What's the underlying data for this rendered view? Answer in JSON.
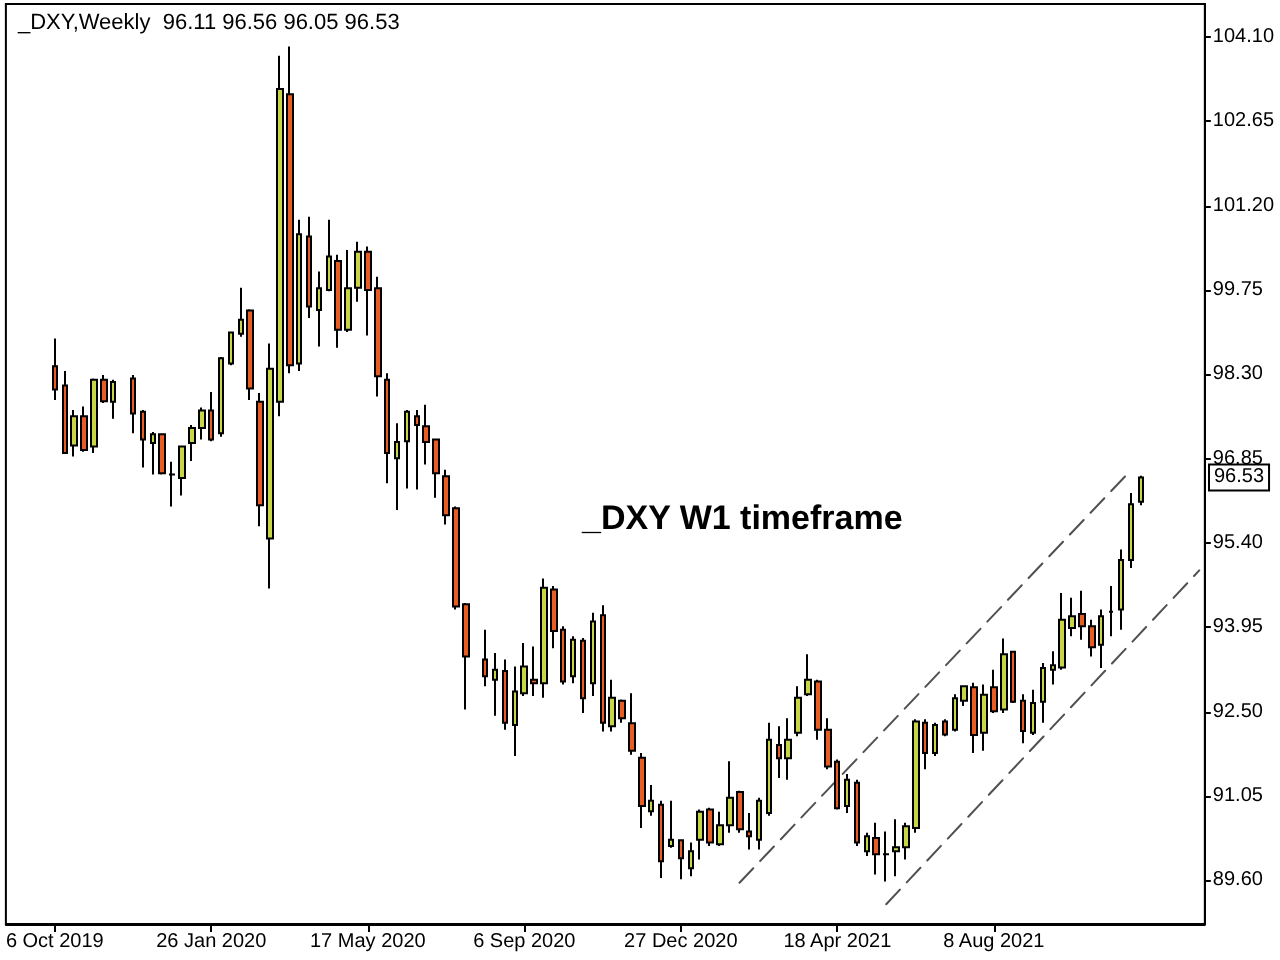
{
  "chart_data": {
    "type": "candlestick",
    "title": "_DXY,Weekly  96.11 96.56 96.05 96.53",
    "x": [
      "2019-10-06",
      "2019-10-13",
      "2019-10-20",
      "2019-10-27",
      "2019-11-03",
      "2019-11-10",
      "2019-11-17",
      "2019-12-01",
      "2019-12-08",
      "2019-12-15",
      "2019-12-22",
      "2019-12-29",
      "2020-01-05",
      "2020-01-12",
      "2020-01-19",
      "2020-01-26",
      "2020-02-02",
      "2020-02-09",
      "2020-02-16",
      "2020-02-23",
      "2020-03-01",
      "2020-03-08",
      "2020-03-15",
      "2020-03-22",
      "2020-03-29",
      "2020-04-05",
      "2020-04-12",
      "2020-04-19",
      "2020-04-26",
      "2020-05-03",
      "2020-05-10",
      "2020-05-17",
      "2020-05-24",
      "2020-05-31",
      "2020-06-07",
      "2020-06-14",
      "2020-06-21",
      "2020-06-28",
      "2020-07-05",
      "2020-07-12",
      "2020-07-19",
      "2020-07-26",
      "2020-08-09",
      "2020-08-16",
      "2020-08-23",
      "2020-08-30",
      "2020-09-06",
      "2020-09-13",
      "2020-09-20",
      "2020-09-27",
      "2020-10-04",
      "2020-10-11",
      "2020-10-18",
      "2020-10-25",
      "2020-11-01",
      "2020-11-08",
      "2020-11-15",
      "2020-11-22",
      "2020-11-29",
      "2020-12-06",
      "2020-12-13",
      "2020-12-20",
      "2020-12-27",
      "2021-01-03",
      "2021-01-10",
      "2021-01-17",
      "2021-01-24",
      "2021-01-31",
      "2021-02-07",
      "2021-02-14",
      "2021-02-21",
      "2021-02-28",
      "2021-03-07",
      "2021-03-14",
      "2021-03-21",
      "2021-03-28",
      "2021-04-04",
      "2021-04-11",
      "2021-04-18",
      "2021-04-25",
      "2021-05-02",
      "2021-05-09",
      "2021-05-16",
      "2021-05-23",
      "2021-05-30",
      "2021-06-06",
      "2021-06-13",
      "2021-06-20",
      "2021-06-27",
      "2021-07-04",
      "2021-07-11",
      "2021-07-18",
      "2021-07-25",
      "2021-08-01",
      "2021-08-08",
      "2021-08-15",
      "2021-08-22",
      "2021-08-29",
      "2021-09-05",
      "2021-09-12",
      "2021-09-19",
      "2021-09-26",
      "2021-10-03",
      "2021-10-10",
      "2021-10-17",
      "2021-10-24",
      "2021-10-31",
      "2021-11-07",
      "2021-11-14",
      "2021-11-21"
    ],
    "ohlc": [
      [
        98.44,
        98.92,
        97.86,
        98.04
      ],
      [
        98.11,
        98.36,
        96.93,
        96.95
      ],
      [
        97.08,
        97.69,
        96.89,
        97.58
      ],
      [
        97.58,
        97.75,
        96.97,
        97.0
      ],
      [
        97.06,
        98.23,
        96.95,
        98.21
      ],
      [
        98.21,
        98.29,
        97.81,
        97.84
      ],
      [
        97.83,
        98.21,
        97.54,
        98.17
      ],
      [
        98.23,
        98.29,
        97.29,
        97.63
      ],
      [
        97.66,
        97.69,
        96.7,
        97.18
      ],
      [
        97.12,
        97.31,
        96.58,
        97.27
      ],
      [
        97.27,
        97.29,
        96.58,
        96.6
      ],
      [
        96.58,
        96.8,
        96.03,
        96.58
      ],
      [
        96.52,
        97.08,
        96.22,
        97.06
      ],
      [
        97.12,
        97.43,
        96.81,
        97.38
      ],
      [
        97.38,
        97.73,
        97.18,
        97.68
      ],
      [
        97.68,
        98.0,
        97.15,
        97.18
      ],
      [
        97.29,
        98.6,
        97.23,
        98.58
      ],
      [
        98.49,
        99.04,
        98.46,
        99.02
      ],
      [
        99.0,
        99.79,
        98.95,
        99.24
      ],
      [
        99.4,
        99.42,
        97.86,
        98.06
      ],
      [
        97.83,
        97.98,
        95.69,
        96.05
      ],
      [
        95.48,
        98.83,
        94.62,
        98.4
      ],
      [
        97.83,
        103.78,
        97.58,
        103.21
      ],
      [
        103.12,
        103.94,
        98.32,
        98.46
      ],
      [
        98.49,
        100.96,
        98.36,
        100.71
      ],
      [
        100.67,
        101.01,
        99.27,
        99.47
      ],
      [
        99.41,
        100.07,
        98.78,
        99.78
      ],
      [
        99.75,
        100.96,
        99.73,
        100.33
      ],
      [
        100.25,
        100.36,
        98.76,
        99.07
      ],
      [
        99.07,
        100.44,
        99.03,
        99.78
      ],
      [
        99.79,
        100.58,
        99.55,
        100.41
      ],
      [
        100.41,
        100.5,
        98.97,
        99.75
      ],
      [
        99.78,
        99.98,
        97.92,
        98.27
      ],
      [
        98.21,
        98.32,
        96.43,
        96.95
      ],
      [
        96.86,
        97.46,
        95.97,
        97.14
      ],
      [
        97.15,
        97.69,
        96.34,
        97.66
      ],
      [
        97.58,
        97.69,
        96.32,
        97.43
      ],
      [
        97.41,
        97.78,
        96.75,
        97.14
      ],
      [
        97.18,
        97.18,
        96.18,
        96.6
      ],
      [
        96.55,
        96.66,
        95.72,
        95.88
      ],
      [
        96.0,
        96.03,
        94.26,
        94.31
      ],
      [
        94.35,
        94.37,
        92.54,
        93.45
      ],
      [
        93.4,
        93.91,
        92.94,
        93.11
      ],
      [
        93.05,
        93.51,
        92.43,
        93.22
      ],
      [
        93.2,
        93.4,
        92.19,
        92.31
      ],
      [
        92.27,
        93.28,
        91.74,
        92.85
      ],
      [
        92.82,
        93.68,
        92.77,
        93.28
      ],
      [
        93.05,
        93.62,
        92.77,
        92.99
      ],
      [
        92.99,
        94.79,
        92.74,
        94.63
      ],
      [
        94.6,
        94.66,
        93.59,
        93.89
      ],
      [
        93.91,
        93.97,
        92.97,
        93.02
      ],
      [
        93.11,
        93.8,
        92.99,
        93.74
      ],
      [
        93.72,
        93.77,
        92.48,
        92.73
      ],
      [
        92.99,
        94.2,
        92.77,
        94.05
      ],
      [
        94.16,
        94.33,
        92.16,
        92.31
      ],
      [
        92.25,
        93.05,
        92.16,
        92.74
      ],
      [
        92.69,
        92.71,
        92.31,
        92.39
      ],
      [
        92.3,
        92.82,
        91.76,
        91.83
      ],
      [
        91.71,
        91.79,
        90.5,
        90.88
      ],
      [
        90.79,
        91.24,
        90.71,
        90.97
      ],
      [
        90.9,
        90.97,
        89.64,
        89.93
      ],
      [
        90.19,
        90.97,
        90.16,
        90.3
      ],
      [
        90.29,
        90.3,
        89.62,
        89.98
      ],
      [
        89.81,
        90.25,
        89.67,
        90.1
      ],
      [
        90.3,
        90.82,
        89.96,
        90.78
      ],
      [
        90.82,
        90.85,
        90.19,
        90.25
      ],
      [
        90.22,
        90.78,
        90.19,
        90.55
      ],
      [
        90.55,
        91.65,
        90.42,
        91.02
      ],
      [
        91.12,
        91.14,
        90.42,
        90.48
      ],
      [
        90.44,
        90.76,
        90.13,
        90.36
      ],
      [
        90.3,
        91.02,
        90.13,
        90.97
      ],
      [
        90.76,
        92.31,
        90.71,
        92.02
      ],
      [
        91.93,
        92.25,
        91.36,
        91.7
      ],
      [
        91.7,
        92.39,
        91.33,
        92.02
      ],
      [
        92.14,
        92.94,
        92.08,
        92.74
      ],
      [
        92.8,
        93.49,
        92.77,
        93.05
      ],
      [
        93.02,
        93.05,
        92.02,
        92.19
      ],
      [
        92.19,
        92.39,
        91.51,
        91.56
      ],
      [
        91.64,
        91.68,
        90.82,
        90.84
      ],
      [
        90.88,
        91.43,
        90.76,
        91.33
      ],
      [
        91.28,
        91.33,
        90.19,
        90.25
      ],
      [
        90.1,
        90.42,
        90.02,
        90.36
      ],
      [
        90.33,
        90.59,
        89.7,
        90.05
      ],
      [
        90.05,
        90.44,
        89.58,
        90.05
      ],
      [
        90.1,
        90.65,
        89.67,
        90.17
      ],
      [
        90.17,
        90.59,
        89.96,
        90.53
      ],
      [
        90.5,
        92.37,
        90.42,
        92.33
      ],
      [
        92.31,
        92.37,
        91.51,
        91.79
      ],
      [
        91.79,
        92.31,
        91.74,
        92.27
      ],
      [
        92.33,
        92.37,
        92.08,
        92.11
      ],
      [
        92.19,
        92.8,
        92.16,
        92.73
      ],
      [
        92.69,
        92.94,
        92.6,
        92.94
      ],
      [
        92.92,
        93.0,
        91.79,
        92.1
      ],
      [
        92.14,
        92.97,
        91.83,
        92.79
      ],
      [
        92.92,
        93.22,
        92.48,
        92.51
      ],
      [
        92.54,
        93.76,
        92.48,
        93.49
      ],
      [
        93.53,
        93.53,
        92.65,
        92.67
      ],
      [
        92.69,
        92.8,
        91.96,
        92.17
      ],
      [
        92.14,
        92.88,
        92.1,
        92.65
      ],
      [
        92.67,
        93.34,
        92.31,
        93.25
      ],
      [
        93.22,
        93.54,
        92.97,
        93.3
      ],
      [
        93.26,
        94.54,
        93.22,
        94.08
      ],
      [
        93.94,
        94.46,
        93.8,
        94.14
      ],
      [
        94.18,
        94.58,
        93.74,
        93.97
      ],
      [
        93.97,
        94.08,
        93.45,
        93.61
      ],
      [
        93.65,
        94.26,
        93.25,
        94.14
      ],
      [
        94.22,
        94.66,
        93.8,
        94.22
      ],
      [
        94.26,
        95.29,
        93.91,
        95.11
      ],
      [
        95.11,
        96.26,
        94.97,
        96.07
      ],
      [
        96.11,
        96.56,
        96.05,
        96.53
      ]
    ],
    "colors": [
      "#e85d24",
      "#e85d24",
      "#c8d645",
      "#e85d24",
      "#c8d645",
      "#e85d24",
      "#c8d645",
      "#e85d24",
      "#e85d24",
      "#c8d645",
      "#e85d24",
      "#000000",
      "#c8d645",
      "#c8d645",
      "#c8d645",
      "#e85d24",
      "#c8d645",
      "#c8d645",
      "#c8d645",
      "#e85d24",
      "#e85d24",
      "#c8d645",
      "#c8d645",
      "#e85d24",
      "#c8d645",
      "#e85d24",
      "#c8d645",
      "#c8d645",
      "#e85d24",
      "#c8d645",
      "#c8d645",
      "#e85d24",
      "#e85d24",
      "#e85d24",
      "#c8d645",
      "#c8d645",
      "#e85d24",
      "#e85d24",
      "#e85d24",
      "#e85d24",
      "#e85d24",
      "#e85d24",
      "#e85d24",
      "#c8d645",
      "#e85d24",
      "#c8d645",
      "#c8d645",
      "#e85d24",
      "#c8d645",
      "#e85d24",
      "#e85d24",
      "#c8d645",
      "#e85d24",
      "#c8d645",
      "#e85d24",
      "#c8d645",
      "#e85d24",
      "#e85d24",
      "#e85d24",
      "#c8d645",
      "#e85d24",
      "#c8d645",
      "#e85d24",
      "#c8d645",
      "#c8d645",
      "#e85d24",
      "#c8d645",
      "#c8d645",
      "#e85d24",
      "#e85d24",
      "#c8d645",
      "#c8d645",
      "#e85d24",
      "#c8d645",
      "#c8d645",
      "#c8d645",
      "#e85d24",
      "#e85d24",
      "#e85d24",
      "#c8d645",
      "#e85d24",
      "#c8d645",
      "#e85d24",
      "#000000",
      "#c8d645",
      "#c8d645",
      "#c8d645",
      "#e85d24",
      "#c8d645",
      "#e85d24",
      "#c8d645",
      "#c8d645",
      "#e85d24",
      "#c8d645",
      "#e85d24",
      "#c8d645",
      "#e85d24",
      "#e85d24",
      "#c8d645",
      "#c8d645",
      "#c8d645",
      "#c8d645",
      "#c8d645",
      "#e85d24",
      "#e85d24",
      "#c8d645",
      "#000000",
      "#c8d645",
      "#c8d645",
      "#c8d645"
    ],
    "series": [
      {
        "type": "line",
        "x": [
          "2021-02-07",
          "2021-11-14"
        ],
        "values": [
          89.56,
          96.65
        ],
        "color": "#505050",
        "line_style": "dashed"
      },
      {
        "type": "line",
        "x": [
          "2021-05-23",
          "2022-01-02"
        ],
        "values": [
          89.19,
          94.93
        ],
        "color": "#505050",
        "line_style": "dashed"
      }
    ],
    "marker": "none",
    "xlim": [
      "2019-09-01",
      "2022-01-06"
    ],
    "xticks": [
      {
        "value": "2019-10-06",
        "label": "6 Oct 2019"
      },
      {
        "value": "2020-01-26",
        "label": "26 Jan 2020"
      },
      {
        "value": "2020-05-17",
        "label": "17 May 2020"
      },
      {
        "value": "2020-09-06",
        "label": "6 Sep 2020"
      },
      {
        "value": "2020-12-27",
        "label": "27 Dec 2020"
      },
      {
        "value": "2021-04-18",
        "label": "18 Apr 2021"
      },
      {
        "value": "2021-08-08",
        "label": "8 Aug 2021"
      }
    ],
    "ylim": [
      88.85,
      104.67
    ],
    "yticks": [
      {
        "value": 89.6,
        "label": "89.60"
      },
      91.05,
      {
        "value": 92.5,
        "label": "92.50"
      },
      93.95,
      {
        "value": 95.4,
        "label": "95.40"
      },
      96.85,
      {
        "value": 98.3,
        "label": "98.30"
      },
      99.75,
      {
        "value": 101.2,
        "label": "101.20"
      },
      102.65,
      {
        "value": 104.1,
        "label": "104.10"
      }
    ],
    "annotations": [
      "_DXY W1 timeframe",
      {
        "text": "96.53",
        "y": 96.53
      }
    ]
  }
}
